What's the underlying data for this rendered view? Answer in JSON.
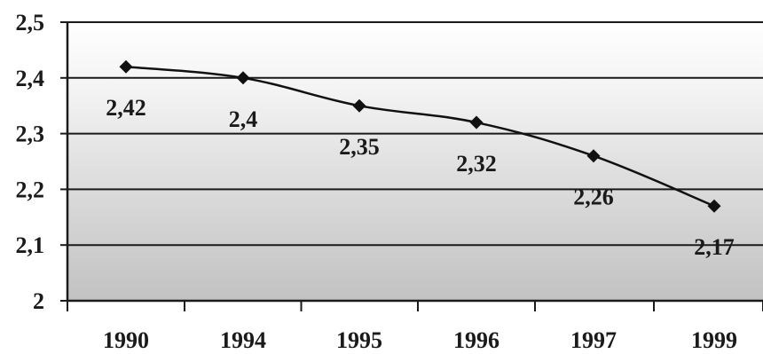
{
  "chart_data": {
    "type": "line",
    "title": "",
    "xlabel": "",
    "ylabel": "",
    "categories": [
      "1990",
      "1994",
      "1995",
      "1996",
      "1997",
      "1999"
    ],
    "values": [
      2.42,
      2.4,
      2.35,
      2.32,
      2.26,
      2.17
    ],
    "value_labels": [
      "2,42",
      "2,4",
      "2,35",
      "2,32",
      "2,26",
      "2,17"
    ],
    "ylim": [
      2,
      2.5
    ],
    "y_ticks": [
      2,
      2.1,
      2.2,
      2.3,
      2.4,
      2.5
    ],
    "y_tick_labels": [
      "2",
      "2,1",
      "2,2",
      "2,3",
      "2,4",
      "2,5"
    ],
    "grid": true,
    "marker": "diamond",
    "line_color": "#111111",
    "plot_background": "gradient-white-to-gray",
    "legend": "none"
  }
}
